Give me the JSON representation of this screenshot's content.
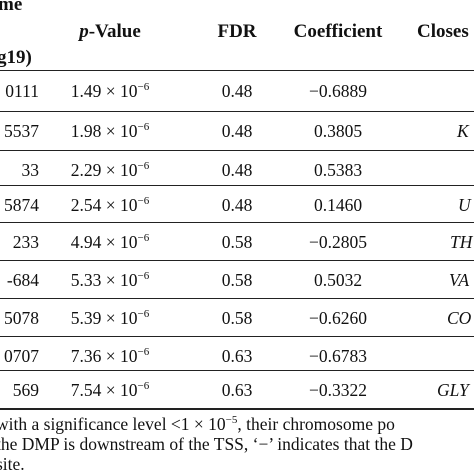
{
  "header": {
    "name_top": "me",
    "name_bottom": "g19)",
    "pvalue_italic": "p",
    "pvalue_rest": "-Value",
    "fdr": "FDR",
    "coefficient": "Coefficient",
    "closest": "Closes"
  },
  "rows": [
    {
      "name": "0111",
      "p_mant": "1.49 × 10",
      "p_exp": "−6",
      "fdr": "0.48",
      "coef": "−0.6889",
      "gene": ""
    },
    {
      "name": "5537",
      "p_mant": "1.98 × 10",
      "p_exp": "−6",
      "fdr": "0.48",
      "coef": "0.3805",
      "gene": "K"
    },
    {
      "name": "33",
      "p_mant": "2.29 × 10",
      "p_exp": "−6",
      "fdr": "0.48",
      "coef": "0.5383",
      "gene": ""
    },
    {
      "name": "5874",
      "p_mant": "2.54 × 10",
      "p_exp": "−6",
      "fdr": "0.48",
      "coef": "0.1460",
      "gene": "U"
    },
    {
      "name": "233",
      "p_mant": "4.94 × 10",
      "p_exp": "−6",
      "fdr": "0.58",
      "coef": "−0.2805",
      "gene": "TH"
    },
    {
      "name": "-684",
      "p_mant": "5.33 × 10",
      "p_exp": "−6",
      "fdr": "0.58",
      "coef": "0.5032",
      "gene": "VA"
    },
    {
      "name": "5078",
      "p_mant": "5.39 × 10",
      "p_exp": "−6",
      "fdr": "0.58",
      "coef": "−0.6260",
      "gene": "CO"
    },
    {
      "name": "0707",
      "p_mant": "7.36 × 10",
      "p_exp": "−6",
      "fdr": "0.63",
      "coef": "−0.6783",
      "gene": ""
    },
    {
      "name": "569",
      "p_mant": "7.54 × 10",
      "p_exp": "−6",
      "fdr": "0.63",
      "coef": "−0.3322",
      "gene": "GLY"
    }
  ],
  "notes": {
    "line1_a": "with a significance level <1 × 10",
    "line1_exp": "−5",
    "line1_b": ", their chromosome po",
    "line2": "the DMP is downstream of the TSS, ‘−’ indicates that the D",
    "line3": "site."
  }
}
